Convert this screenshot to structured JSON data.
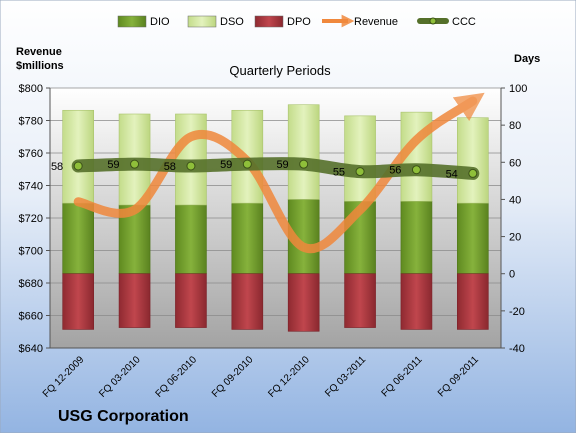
{
  "chart_data": {
    "type": "bar",
    "title": "Quarterly Periods",
    "company": "USG Corporation",
    "left_axis_label": [
      "Revenue",
      "$millions"
    ],
    "right_axis_label": "Days",
    "left_axis": {
      "range": [
        640,
        800
      ],
      "ticks": [
        "$640",
        "$660",
        "$680",
        "$700",
        "$720",
        "$740",
        "$760",
        "$780",
        "$800"
      ]
    },
    "right_axis": {
      "range": [
        -40,
        100
      ],
      "ticks": [
        "-40",
        "-20",
        "0",
        "20",
        "40",
        "60",
        "80",
        "100"
      ]
    },
    "categories": [
      "FQ 12-2009",
      "FQ 03-2010",
      "FQ 06-2010",
      "FQ 09-2010",
      "FQ 12-2010",
      "FQ 03-2011",
      "FQ 06-2011",
      "FQ 09-2011"
    ],
    "legend": {
      "position": "top",
      "entries": [
        "DIO",
        "DSO",
        "DPO",
        "Revenue",
        "CCC"
      ]
    },
    "grid": true,
    "series": [
      {
        "name": "DIO",
        "axis": "right",
        "values": [
          38,
          37,
          37,
          38,
          40,
          39,
          39,
          38
        ],
        "color": "#6f9a2a"
      },
      {
        "name": "DSO",
        "axis": "right",
        "values": [
          50,
          49,
          49,
          50,
          51,
          46,
          48,
          46
        ],
        "color": "#cfe79a"
      },
      {
        "name": "DPO",
        "axis": "right",
        "values": [
          -30,
          -29,
          -29,
          -30,
          -31,
          -29,
          -30,
          -30
        ],
        "color": "#a5333b"
      },
      {
        "name": "Revenue",
        "axis": "left",
        "values": [
          730,
          725,
          770,
          755,
          702,
          725,
          768,
          792
        ],
        "color": "#f0883c"
      },
      {
        "name": "CCC",
        "axis": "right",
        "values": [
          58,
          59,
          58,
          59,
          59,
          55,
          56,
          54
        ],
        "color": "#55702a"
      }
    ]
  }
}
